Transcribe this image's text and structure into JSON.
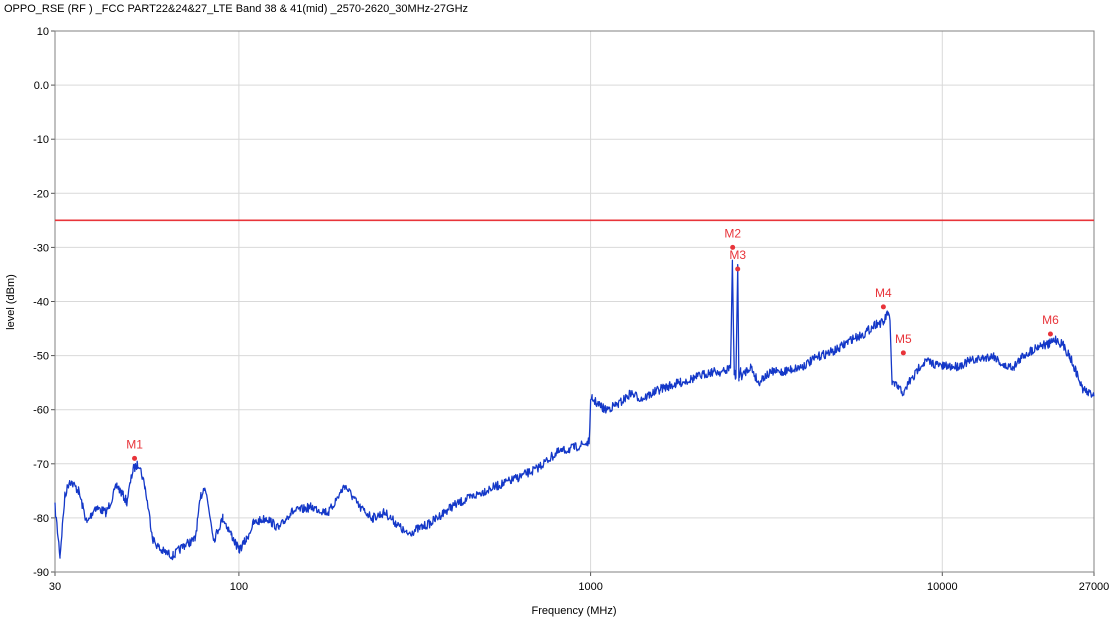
{
  "chart_data": {
    "type": "line",
    "title": "OPPO_RSE (RF ) _FCC PART22&24&27_LTE Band 38 & 41(mid) _2570-2620_30MHz-27GHz",
    "xlabel": "Frequency (MHz)",
    "ylabel": "level (dBm)",
    "x_scale": "log",
    "xlim": [
      30,
      27000
    ],
    "ylim": [
      -90,
      10
    ],
    "x_ticks": [
      30,
      100,
      1000,
      10000,
      27000
    ],
    "x_tick_labels": [
      "30",
      "100",
      "1000",
      "10000",
      "27000"
    ],
    "y_ticks": [
      10,
      0,
      -10,
      -20,
      -30,
      -40,
      -50,
      -60,
      -70,
      -80,
      -90
    ],
    "y_tick_labels": [
      "10",
      "0.0",
      "-10",
      "-20",
      "-30",
      "-40",
      "-50",
      "-60",
      "-70",
      "-80",
      "-90"
    ],
    "grid": true,
    "limit_line": {
      "y": -25,
      "color": "#e8343a"
    },
    "series": [
      {
        "color": "#1438c8",
        "x": [
          30,
          31,
          32,
          33,
          35,
          37,
          39,
          42,
          45,
          48,
          50,
          52,
          54,
          57,
          60,
          65,
          70,
          75,
          78,
          80,
          85,
          90,
          95,
          100,
          105,
          110,
          120,
          130,
          140,
          160,
          180,
          200,
          210,
          220,
          240,
          260,
          280,
          300,
          350,
          400,
          500,
          600,
          700,
          800,
          900,
          990,
          1000,
          1010,
          1050,
          1100,
          1200,
          1300,
          1400,
          1600,
          1800,
          2000,
          2200,
          2400,
          2500,
          2530,
          2560,
          2590,
          2620,
          2640,
          2670,
          2700,
          2750,
          2850,
          3000,
          3100,
          3300,
          3500,
          4000,
          4500,
          5000,
          5500,
          6000,
          6500,
          6800,
          7000,
          7100,
          7200,
          7500,
          7800,
          8000,
          8300,
          8600,
          9000,
          10000,
          11000,
          12000,
          14000,
          15000,
          16000,
          17000,
          18000,
          19000,
          20000,
          21000,
          22000,
          23000,
          24000,
          25000,
          26000,
          27000
        ],
        "y": [
          -78,
          -87,
          -76,
          -73,
          -75,
          -81,
          -78,
          -79,
          -74,
          -77,
          -71,
          -70,
          -74,
          -84,
          -86,
          -87,
          -85,
          -84,
          -76,
          -74,
          -84,
          -80,
          -83,
          -86,
          -84,
          -81,
          -80,
          -82,
          -79,
          -78,
          -79,
          -74,
          -76,
          -78,
          -80,
          -79,
          -81,
          -83,
          -81,
          -78,
          -75,
          -73,
          -71,
          -68,
          -67,
          -66,
          -59,
          -58,
          -59,
          -60,
          -59,
          -57,
          -58,
          -56,
          -55,
          -54,
          -53,
          -53,
          -52,
          -33,
          -53,
          -54,
          -34,
          -54,
          -53,
          -54,
          -53,
          -52,
          -55,
          -54,
          -53,
          -53,
          -52,
          -50,
          -49,
          -47,
          -46,
          -44,
          -44,
          -42,
          -44,
          -55,
          -56,
          -57,
          -55,
          -54,
          -52,
          -51,
          -52,
          -52,
          -51,
          -50,
          -52,
          -52,
          -50,
          -49,
          -48,
          -48,
          -47,
          -48,
          -50,
          -53,
          -56,
          -57,
          -57
        ]
      }
    ],
    "markers": [
      {
        "label": "M1",
        "x": 50.5,
        "y": -69
      },
      {
        "label": "M2",
        "x": 2535,
        "y": -30
      },
      {
        "label": "M3",
        "x": 2620,
        "y": -34
      },
      {
        "label": "M4",
        "x": 6800,
        "y": -41
      },
      {
        "label": "M5",
        "x": 7750,
        "y": -49.5
      },
      {
        "label": "M6",
        "x": 20300,
        "y": -46
      }
    ]
  }
}
